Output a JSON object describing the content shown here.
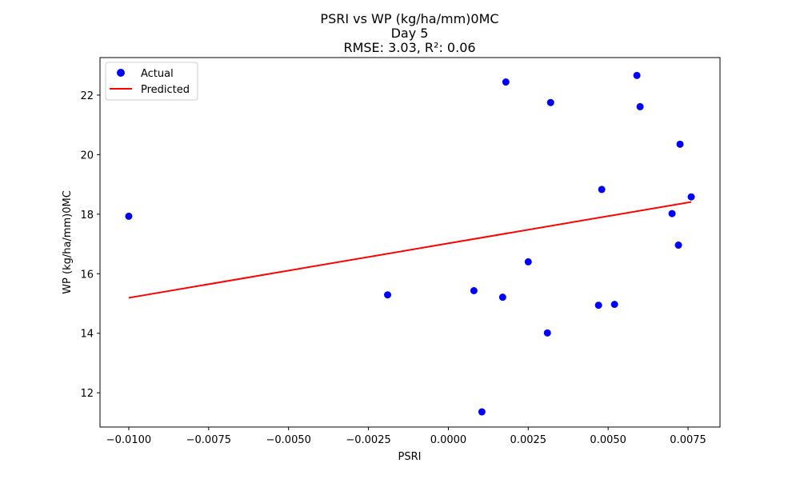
{
  "chart_data": {
    "type": "scatter",
    "title_lines": [
      "PSRI vs WP (kg/ha/mm)0MC",
      "Day 5",
      "RMSE: 3.03, R²: 0.06"
    ],
    "xlabel": "PSRI",
    "ylabel": "WP (kg/ha/mm)0MC",
    "xlim": [
      -0.0109,
      0.0085
    ],
    "ylim": [
      10.85,
      23.26
    ],
    "xticks": [
      -0.01,
      -0.0075,
      -0.005,
      -0.0025,
      0.0,
      0.0025,
      0.005,
      0.0075
    ],
    "xtick_labels": [
      "−0.0100",
      "−0.0075",
      "−0.0050",
      "−0.0025",
      "0.0000",
      "0.0025",
      "0.0050",
      "0.0075"
    ],
    "yticks": [
      12,
      14,
      16,
      18,
      20,
      22
    ],
    "ytick_labels": [
      "12",
      "14",
      "16",
      "18",
      "20",
      "22"
    ],
    "grid": false,
    "legend_position": "upper-left",
    "series": [
      {
        "name": "Actual",
        "kind": "scatter",
        "color": "#0000ff",
        "points": [
          [
            -0.01,
            17.93
          ],
          [
            -0.0019,
            15.29
          ],
          [
            0.0008,
            15.43
          ],
          [
            0.00105,
            11.36
          ],
          [
            0.0017,
            15.21
          ],
          [
            0.0018,
            22.44
          ],
          [
            0.0025,
            16.4
          ],
          [
            0.0031,
            14.01
          ],
          [
            0.0032,
            21.75
          ],
          [
            0.0047,
            14.94
          ],
          [
            0.0048,
            18.83
          ],
          [
            0.0052,
            14.97
          ],
          [
            0.0059,
            22.66
          ],
          [
            0.006,
            21.61
          ],
          [
            0.007,
            18.02
          ],
          [
            0.0072,
            16.96
          ],
          [
            0.00725,
            20.35
          ],
          [
            0.0076,
            18.58
          ]
        ]
      },
      {
        "name": "Predicted",
        "kind": "line",
        "color": "#ff0000",
        "points": [
          [
            -0.01,
            15.19
          ],
          [
            0.0076,
            18.41
          ]
        ]
      }
    ]
  }
}
